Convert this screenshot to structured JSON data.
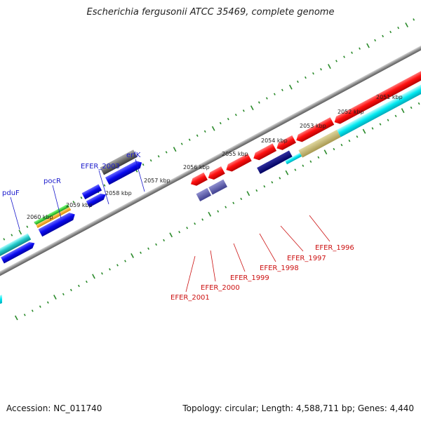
{
  "title": "Escherichia fergusonii ATCC 35469, complete genome",
  "footer": {
    "accession": "Accession: NC_011740",
    "summary": "Topology: circular; Length: 4,588,711 bp; Genes: 4,440"
  },
  "colors": {
    "backbone": "#8a8a8a",
    "tick": "#2a8a2a",
    "top_gene_label": "#1a1acc",
    "bottom_gene_label": "#cc1111"
  },
  "scale_labels": [
    "2051 kbp",
    "2052 kbp",
    "2053 kbp",
    "2054 kbp",
    "2055 kbp",
    "2056 kbp",
    "2057 kbp",
    "2058 kbp",
    "2059 kbp",
    "2060 kbp"
  ],
  "gene_labels_top": [
    "erfK",
    "EFER_2003",
    "pocR",
    "pduF"
  ],
  "gene_labels_bottom": [
    "EFER_1996",
    "EFER_1997",
    "EFER_1998",
    "EFER_1999",
    "EFER_2000",
    "EFER_2001"
  ]
}
